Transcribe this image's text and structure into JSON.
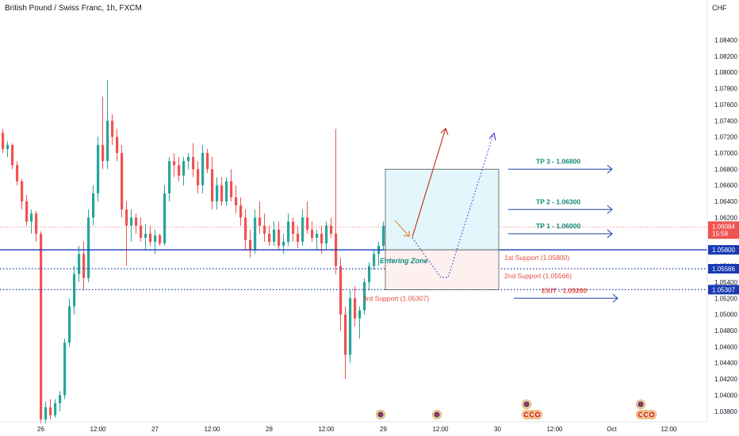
{
  "header": {
    "title": "British Pound / Swiss Franc, 1h, FXCM",
    "currency": "CHF"
  },
  "colors": {
    "up": "#26a69a",
    "down": "#ef5350",
    "support_blue": "#1a3bb3",
    "green_text": "#12897a",
    "red_text": "#e74c3c",
    "target_arrow": "#2042a8",
    "zone_fill": "#e3f6fb",
    "zone_fill_low": "#fdf0ef"
  },
  "chart_data": {
    "type": "candlestick",
    "symbol": "British Pound / Swiss Franc",
    "timeframe": "1h",
    "source": "FXCM",
    "ylim": [
      1.0367,
      1.0868
    ],
    "y_ticks": [
      "1.08400",
      "1.08200",
      "1.08000",
      "1.07800",
      "1.07600",
      "1.07400",
      "1.07200",
      "1.07000",
      "1.06800",
      "1.06600",
      "1.06400",
      "1.06200",
      "1.06000",
      "1.05800",
      "1.05600",
      "1.05400",
      "1.05200",
      "1.05000",
      "1.04800",
      "1.04600",
      "1.04400",
      "1.04200",
      "1.04000",
      "1.03800"
    ],
    "x_ticks": [
      {
        "label": "26",
        "bar": 8
      },
      {
        "label": "12:00",
        "bar": 20
      },
      {
        "label": "27",
        "bar": 32
      },
      {
        "label": "12:00",
        "bar": 44
      },
      {
        "label": "28",
        "bar": 56
      },
      {
        "label": "12:00",
        "bar": 68
      },
      {
        "label": "29",
        "bar": 80
      },
      {
        "label": "12:00",
        "bar": 92
      },
      {
        "label": "30",
        "bar": 104
      },
      {
        "label": "12:00",
        "bar": 116
      },
      {
        "label": "Oct",
        "bar": 128
      },
      {
        "label": "12:00",
        "bar": 140
      }
    ],
    "candles": [
      [
        1.0725,
        1.073,
        1.07,
        1.0705
      ],
      [
        1.0705,
        1.0715,
        1.0695,
        1.071
      ],
      [
        1.071,
        1.0712,
        1.068,
        1.0685
      ],
      [
        1.0685,
        1.069,
        1.066,
        1.0665
      ],
      [
        1.0665,
        1.0668,
        1.063,
        1.064
      ],
      [
        1.064,
        1.0648,
        1.061,
        1.0615
      ],
      [
        1.0615,
        1.063,
        1.06,
        1.0625
      ],
      [
        1.0625,
        1.0628,
        1.059,
        1.06
      ],
      [
        1.06,
        1.0603,
        1.0365,
        1.037
      ],
      [
        1.037,
        1.0392,
        1.0365,
        1.0385
      ],
      [
        1.0385,
        1.0395,
        1.037,
        1.0375
      ],
      [
        1.0375,
        1.0395,
        1.0372,
        1.039
      ],
      [
        1.039,
        1.0405,
        1.038,
        1.04
      ],
      [
        1.04,
        1.047,
        1.0395,
        1.0465
      ],
      [
        1.0465,
        1.052,
        1.046,
        1.051
      ],
      [
        1.051,
        1.056,
        1.05,
        1.055
      ],
      [
        1.055,
        1.0585,
        1.054,
        1.0575
      ],
      [
        1.0575,
        1.059,
        1.053,
        1.0545
      ],
      [
        1.0545,
        1.063,
        1.054,
        1.062
      ],
      [
        1.062,
        1.066,
        1.061,
        1.065
      ],
      [
        1.065,
        1.072,
        1.064,
        1.071
      ],
      [
        1.071,
        1.077,
        1.068,
        1.069
      ],
      [
        1.069,
        1.079,
        1.068,
        1.074
      ],
      [
        1.074,
        1.0748,
        1.071,
        1.072
      ],
      [
        1.072,
        1.073,
        1.069,
        1.07
      ],
      [
        1.07,
        1.071,
        1.062,
        1.063
      ],
      [
        1.063,
        1.064,
        1.056,
        1.061
      ],
      [
        1.061,
        1.063,
        1.059,
        1.062
      ],
      [
        1.062,
        1.0625,
        1.06,
        1.061
      ],
      [
        1.061,
        1.062,
        1.059,
        1.0595
      ],
      [
        1.0595,
        1.0612,
        1.058,
        1.06
      ],
      [
        1.06,
        1.061,
        1.0585,
        1.059
      ],
      [
        1.059,
        1.0605,
        1.0575,
        1.0598
      ],
      [
        1.0598,
        1.06,
        1.0585,
        1.0588
      ],
      [
        1.0588,
        1.066,
        1.0585,
        1.065
      ],
      [
        1.065,
        1.0695,
        1.064,
        1.069
      ],
      [
        1.069,
        1.07,
        1.067,
        1.0685
      ],
      [
        1.0685,
        1.0695,
        1.0665,
        1.0672
      ],
      [
        1.0672,
        1.0695,
        1.066,
        1.069
      ],
      [
        1.069,
        1.07,
        1.068,
        1.0695
      ],
      [
        1.0695,
        1.0712,
        1.067,
        1.068
      ],
      [
        1.068,
        1.069,
        1.065,
        1.066
      ],
      [
        1.066,
        1.071,
        1.065,
        1.07
      ],
      [
        1.07,
        1.0705,
        1.0675,
        1.068
      ],
      [
        1.068,
        1.0695,
        1.063,
        1.064
      ],
      [
        1.064,
        1.067,
        1.063,
        1.066
      ],
      [
        1.066,
        1.067,
        1.0635,
        1.064
      ],
      [
        1.064,
        1.067,
        1.0635,
        1.0665
      ],
      [
        1.0665,
        1.068,
        1.064,
        1.0645
      ],
      [
        1.0645,
        1.066,
        1.0625,
        1.0635
      ],
      [
        1.0635,
        1.0645,
        1.061,
        1.062
      ],
      [
        1.062,
        1.063,
        1.058,
        1.0592
      ],
      [
        1.0592,
        1.0605,
        1.057,
        1.058
      ],
      [
        1.058,
        1.063,
        1.0575,
        1.062
      ],
      [
        1.062,
        1.064,
        1.06,
        1.061
      ],
      [
        1.061,
        1.0625,
        1.059,
        1.06
      ],
      [
        1.06,
        1.061,
        1.0585,
        1.059
      ],
      [
        1.059,
        1.0615,
        1.0585,
        1.0605
      ],
      [
        1.0605,
        1.0615,
        1.058,
        1.0585
      ],
      [
        1.0585,
        1.06,
        1.0575,
        1.059
      ],
      [
        1.059,
        1.0625,
        1.0585,
        1.0615
      ],
      [
        1.0615,
        1.062,
        1.059,
        1.06
      ],
      [
        1.06,
        1.061,
        1.0582,
        1.059
      ],
      [
        1.059,
        1.063,
        1.0585,
        1.062
      ],
      [
        1.062,
        1.064,
        1.06,
        1.0605
      ],
      [
        1.0605,
        1.0615,
        1.059,
        1.0595
      ],
      [
        1.0595,
        1.0605,
        1.058,
        1.06
      ],
      [
        1.06,
        1.061,
        1.0575,
        1.0588
      ],
      [
        1.0588,
        1.0615,
        1.058,
        1.061
      ],
      [
        1.061,
        1.062,
        1.0595,
        1.06
      ],
      [
        1.06,
        1.073,
        1.055,
        1.056
      ],
      [
        1.056,
        1.057,
        1.048,
        1.05
      ],
      [
        1.05,
        1.051,
        1.042,
        1.045
      ],
      [
        1.045,
        1.053,
        1.044,
        1.052
      ],
      [
        1.052,
        1.0535,
        1.0485,
        1.0495
      ],
      [
        1.0495,
        1.051,
        1.047,
        1.0505
      ],
      [
        1.0505,
        1.0545,
        1.05,
        1.054
      ],
      [
        1.054,
        1.0565,
        1.053,
        1.056
      ],
      [
        1.056,
        1.058,
        1.0555,
        1.0575
      ],
      [
        1.0575,
        1.059,
        1.056,
        1.0585
      ],
      [
        1.0585,
        1.0615,
        1.058,
        1.061
      ],
      [
        1.061,
        1.064,
        1.06,
        1.063
      ],
      [
        1.063,
        1.064,
        1.0615,
        1.0622
      ],
      [
        1.0622,
        1.0635,
        1.061,
        1.0615
      ],
      [
        1.0615,
        1.0628,
        1.0605,
        1.062
      ],
      [
        1.062,
        1.0628,
        1.06,
        1.061
      ]
    ],
    "current_price": "1.06084",
    "countdown": "15:58",
    "levels": [
      {
        "label": "1.05800",
        "value": 1.058,
        "style": "solid"
      },
      {
        "label": "1.05566",
        "value": 1.05566,
        "style": "dotted"
      },
      {
        "label": "1.05307",
        "value": 1.05307,
        "style": "dotted"
      }
    ],
    "annotations": {
      "tp3": "TP 3 - 1.06800",
      "tp2": "TP 2 - 1.06300",
      "tp1": "TP 1 - 1.06000",
      "entering_zone": "Entering Zone",
      "support1": "1st Support (1.05800)",
      "support2": "2nd Support (1.05566)",
      "support3": "3rd Support (1.05307)",
      "exit": "EXIT - 1.05200"
    }
  }
}
